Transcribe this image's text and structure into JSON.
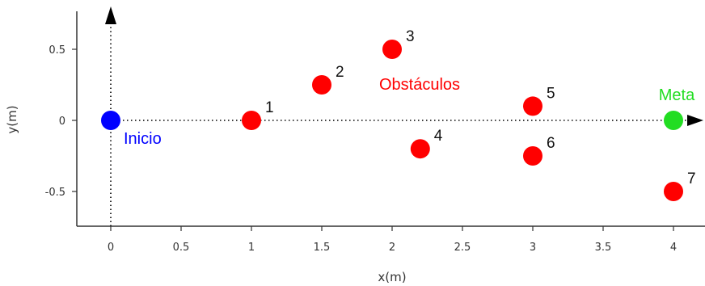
{
  "chart_data": {
    "type": "scatter",
    "xlabel": "x(m)",
    "ylabel": "y(m)",
    "xlim": [
      -0.25,
      4.05
    ],
    "ylim": [
      -0.75,
      0.75
    ],
    "x_ticks": [
      0,
      0.5,
      1,
      1.5,
      2,
      2.5,
      3,
      3.5,
      4
    ],
    "x_tick_labels": [
      "0",
      "0.5",
      "1",
      "1.5",
      "2",
      "2.5",
      "3",
      "3.5",
      "4"
    ],
    "y_ticks": [
      0.5,
      0,
      -0.5
    ],
    "y_tick_labels": [
      "0.5",
      "0",
      "-0.5"
    ],
    "grid": false,
    "start": {
      "label": "Inicio",
      "x": 0,
      "y": 0,
      "color": "#0000ff"
    },
    "goal": {
      "label": "Meta",
      "x": 4,
      "y": 0,
      "color": "#22dd22"
    },
    "obstacles_label": "Obstáculos",
    "obstacle_color": "#ff0000",
    "obstacles": [
      {
        "label": "1",
        "x": 1,
        "y": 0
      },
      {
        "label": "2",
        "x": 1.5,
        "y": 0.25
      },
      {
        "label": "3",
        "x": 2,
        "y": 0.5
      },
      {
        "label": "4",
        "x": 2.2,
        "y": -0.2
      },
      {
        "label": "5",
        "x": 3,
        "y": 0.1
      },
      {
        "label": "6",
        "x": 3,
        "y": -0.25
      },
      {
        "label": "7",
        "x": 4,
        "y": -0.5
      }
    ]
  }
}
